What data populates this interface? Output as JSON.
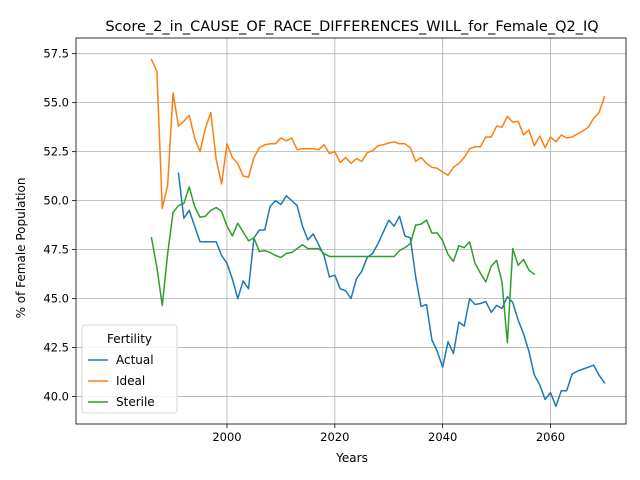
{
  "chart_data": {
    "type": "line",
    "title": "Score_2_in_CAUSE_OF_RACE_DIFFERENCES_WILL_for_Female_Q2_IQ",
    "xlabel": "Years",
    "ylabel": "% of Female Population",
    "xlim": [
      1972,
      2074
    ],
    "ylim": [
      38.6,
      58.3
    ],
    "xticks": [
      2000,
      2020,
      2040,
      2060
    ],
    "yticks": [
      40.0,
      42.5,
      45.0,
      47.5,
      50.0,
      52.5,
      55.0,
      57.5
    ],
    "grid": true,
    "legend": {
      "title": "Fertility",
      "position": "lower-left"
    },
    "series": [
      {
        "name": "Actual",
        "color": "#1f77b4",
        "points": [
          [
            1991,
            51.4
          ],
          [
            1992,
            49.1
          ],
          [
            1993,
            49.5
          ],
          [
            1994,
            48.7
          ],
          [
            1995,
            47.9
          ],
          [
            1996,
            47.9
          ],
          [
            1997,
            47.9
          ],
          [
            1998,
            47.9
          ],
          [
            1999,
            47.2
          ],
          [
            2000,
            46.8
          ],
          [
            2001,
            46.0
          ],
          [
            2002,
            45.0
          ],
          [
            2003,
            45.9
          ],
          [
            2004,
            45.5
          ],
          [
            2005,
            48.1
          ],
          [
            2006,
            48.5
          ],
          [
            2007,
            48.5
          ],
          [
            2008,
            49.7
          ],
          [
            2009,
            50.0
          ],
          [
            2010,
            49.8
          ],
          [
            2011,
            50.25
          ],
          [
            2012,
            50.0
          ],
          [
            2013,
            49.75
          ],
          [
            2014,
            48.7
          ],
          [
            2015,
            48.0
          ],
          [
            2016,
            48.3
          ],
          [
            2017,
            47.75
          ],
          [
            2018,
            47.2
          ],
          [
            2019,
            46.1
          ],
          [
            2020,
            46.2
          ],
          [
            2021,
            45.5
          ],
          [
            2022,
            45.4
          ],
          [
            2023,
            45.0
          ],
          [
            2024,
            46.0
          ],
          [
            2025,
            46.4
          ],
          [
            2026,
            47.1
          ],
          [
            2027,
            47.3
          ],
          [
            2028,
            47.8
          ],
          [
            2029,
            48.4
          ],
          [
            2030,
            49.0
          ],
          [
            2031,
            48.7
          ],
          [
            2032,
            49.2
          ],
          [
            2033,
            48.2
          ],
          [
            2034,
            48.1
          ],
          [
            2035,
            46.1
          ],
          [
            2036,
            44.6
          ],
          [
            2037,
            44.7
          ],
          [
            2038,
            42.9
          ],
          [
            2039,
            42.3
          ],
          [
            2040,
            41.5
          ],
          [
            2041,
            42.8
          ],
          [
            2042,
            42.2
          ],
          [
            2043,
            43.8
          ],
          [
            2044,
            43.6
          ],
          [
            2045,
            45.0
          ],
          [
            2046,
            44.7
          ],
          [
            2047,
            44.75
          ],
          [
            2048,
            44.85
          ],
          [
            2049,
            44.3
          ],
          [
            2050,
            44.65
          ],
          [
            2051,
            44.5
          ],
          [
            2052,
            45.1
          ],
          [
            2053,
            44.8
          ],
          [
            2054,
            43.9
          ],
          [
            2055,
            43.2
          ],
          [
            2056,
            42.3
          ],
          [
            2057,
            41.1
          ],
          [
            2058,
            40.6
          ],
          [
            2059,
            39.85
          ],
          [
            2060,
            40.2
          ],
          [
            2061,
            39.5
          ],
          [
            2062,
            40.3
          ],
          [
            2063,
            40.3
          ],
          [
            2064,
            41.15
          ],
          [
            2065,
            41.3
          ],
          [
            2066,
            41.4
          ],
          [
            2067,
            41.5
          ],
          [
            2068,
            41.6
          ],
          [
            2069,
            41.1
          ],
          [
            2070,
            40.7
          ]
        ]
      },
      {
        "name": "Ideal",
        "color": "#ff7f0e",
        "points": [
          [
            1986,
            57.2
          ],
          [
            1987,
            56.6
          ],
          [
            1988,
            49.6
          ],
          [
            1989,
            50.8
          ],
          [
            1990,
            55.5
          ],
          [
            1991,
            53.8
          ],
          [
            1992,
            54.05
          ],
          [
            1993,
            54.35
          ],
          [
            1994,
            53.2
          ],
          [
            1995,
            52.5
          ],
          [
            1996,
            53.7
          ],
          [
            1997,
            54.5
          ],
          [
            1998,
            52.1
          ],
          [
            1999,
            50.85
          ],
          [
            2000,
            52.9
          ],
          [
            2001,
            52.2
          ],
          [
            2002,
            51.9
          ],
          [
            2003,
            51.25
          ],
          [
            2004,
            51.2
          ],
          [
            2005,
            52.2
          ],
          [
            2006,
            52.7
          ],
          [
            2007,
            52.85
          ],
          [
            2008,
            52.9
          ],
          [
            2009,
            52.9
          ],
          [
            2010,
            53.2
          ],
          [
            2011,
            53.05
          ],
          [
            2012,
            53.2
          ],
          [
            2013,
            52.6
          ],
          [
            2014,
            52.65
          ],
          [
            2015,
            52.65
          ],
          [
            2016,
            52.65
          ],
          [
            2017,
            52.6
          ],
          [
            2018,
            52.85
          ],
          [
            2019,
            52.4
          ],
          [
            2020,
            52.5
          ],
          [
            2021,
            51.95
          ],
          [
            2022,
            52.2
          ],
          [
            2023,
            51.9
          ],
          [
            2024,
            52.15
          ],
          [
            2025,
            52.0
          ],
          [
            2026,
            52.45
          ],
          [
            2027,
            52.55
          ],
          [
            2028,
            52.8
          ],
          [
            2029,
            52.85
          ],
          [
            2030,
            52.95
          ],
          [
            2031,
            53.0
          ],
          [
            2032,
            52.9
          ],
          [
            2033,
            52.9
          ],
          [
            2034,
            52.7
          ],
          [
            2035,
            52.0
          ],
          [
            2036,
            52.2
          ],
          [
            2037,
            51.9
          ],
          [
            2038,
            51.7
          ],
          [
            2039,
            51.65
          ],
          [
            2040,
            51.45
          ],
          [
            2041,
            51.3
          ],
          [
            2042,
            51.7
          ],
          [
            2043,
            51.9
          ],
          [
            2044,
            52.2
          ],
          [
            2045,
            52.65
          ],
          [
            2046,
            52.75
          ],
          [
            2047,
            52.75
          ],
          [
            2048,
            53.25
          ],
          [
            2049,
            53.25
          ],
          [
            2050,
            53.8
          ],
          [
            2051,
            53.75
          ],
          [
            2052,
            54.3
          ],
          [
            2053,
            54.0
          ],
          [
            2054,
            54.05
          ],
          [
            2055,
            53.35
          ],
          [
            2056,
            53.6
          ],
          [
            2057,
            52.8
          ],
          [
            2058,
            53.3
          ],
          [
            2059,
            52.7
          ],
          [
            2060,
            53.25
          ],
          [
            2061,
            53.0
          ],
          [
            2062,
            53.35
          ],
          [
            2063,
            53.2
          ],
          [
            2064,
            53.25
          ],
          [
            2065,
            53.4
          ],
          [
            2066,
            53.55
          ],
          [
            2067,
            53.75
          ],
          [
            2068,
            54.2
          ],
          [
            2069,
            54.5
          ],
          [
            2070,
            55.3
          ]
        ]
      },
      {
        "name": "Sterile",
        "color": "#2ca02c",
        "points": [
          [
            1986,
            48.1
          ],
          [
            1987,
            46.6
          ],
          [
            1988,
            44.65
          ],
          [
            1989,
            47.3
          ],
          [
            1990,
            49.4
          ],
          [
            1991,
            49.75
          ],
          [
            1992,
            49.85
          ],
          [
            1993,
            50.7
          ],
          [
            1994,
            49.7
          ],
          [
            1995,
            49.15
          ],
          [
            1996,
            49.2
          ],
          [
            1997,
            49.5
          ],
          [
            1998,
            49.65
          ],
          [
            1999,
            49.45
          ],
          [
            2000,
            48.7
          ],
          [
            2001,
            48.2
          ],
          [
            2002,
            48.85
          ],
          [
            2003,
            48.4
          ],
          [
            2004,
            47.95
          ],
          [
            2005,
            48.1
          ],
          [
            2006,
            47.4
          ],
          [
            2007,
            47.45
          ],
          [
            2008,
            47.35
          ],
          [
            2009,
            47.2
          ],
          [
            2010,
            47.1
          ],
          [
            2011,
            47.3
          ],
          [
            2012,
            47.35
          ],
          [
            2013,
            47.55
          ],
          [
            2014,
            47.75
          ],
          [
            2015,
            47.55
          ],
          [
            2016,
            47.55
          ],
          [
            2017,
            47.55
          ],
          [
            2018,
            47.3
          ],
          [
            2019,
            47.15
          ],
          [
            2020,
            47.15
          ],
          [
            2021,
            47.15
          ],
          [
            2022,
            47.15
          ],
          [
            2023,
            47.15
          ],
          [
            2024,
            47.15
          ],
          [
            2025,
            47.15
          ],
          [
            2026,
            47.15
          ],
          [
            2027,
            47.15
          ],
          [
            2028,
            47.15
          ],
          [
            2029,
            47.15
          ],
          [
            2030,
            47.15
          ],
          [
            2031,
            47.15
          ],
          [
            2032,
            47.45
          ],
          [
            2033,
            47.6
          ],
          [
            2034,
            47.8
          ],
          [
            2035,
            48.75
          ],
          [
            2036,
            48.8
          ],
          [
            2037,
            49.0
          ],
          [
            2038,
            48.35
          ],
          [
            2039,
            48.35
          ],
          [
            2040,
            47.95
          ],
          [
            2041,
            47.25
          ],
          [
            2042,
            46.9
          ],
          [
            2043,
            47.7
          ],
          [
            2044,
            47.6
          ],
          [
            2045,
            47.9
          ],
          [
            2046,
            46.8
          ],
          [
            2047,
            46.3
          ],
          [
            2048,
            45.85
          ],
          [
            2049,
            46.65
          ],
          [
            2050,
            46.95
          ],
          [
            2051,
            45.85
          ],
          [
            2052,
            42.75
          ],
          [
            2053,
            47.55
          ],
          [
            2054,
            46.7
          ],
          [
            2055,
            47.0
          ],
          [
            2056,
            46.45
          ],
          [
            2057,
            46.25
          ]
        ]
      }
    ]
  }
}
